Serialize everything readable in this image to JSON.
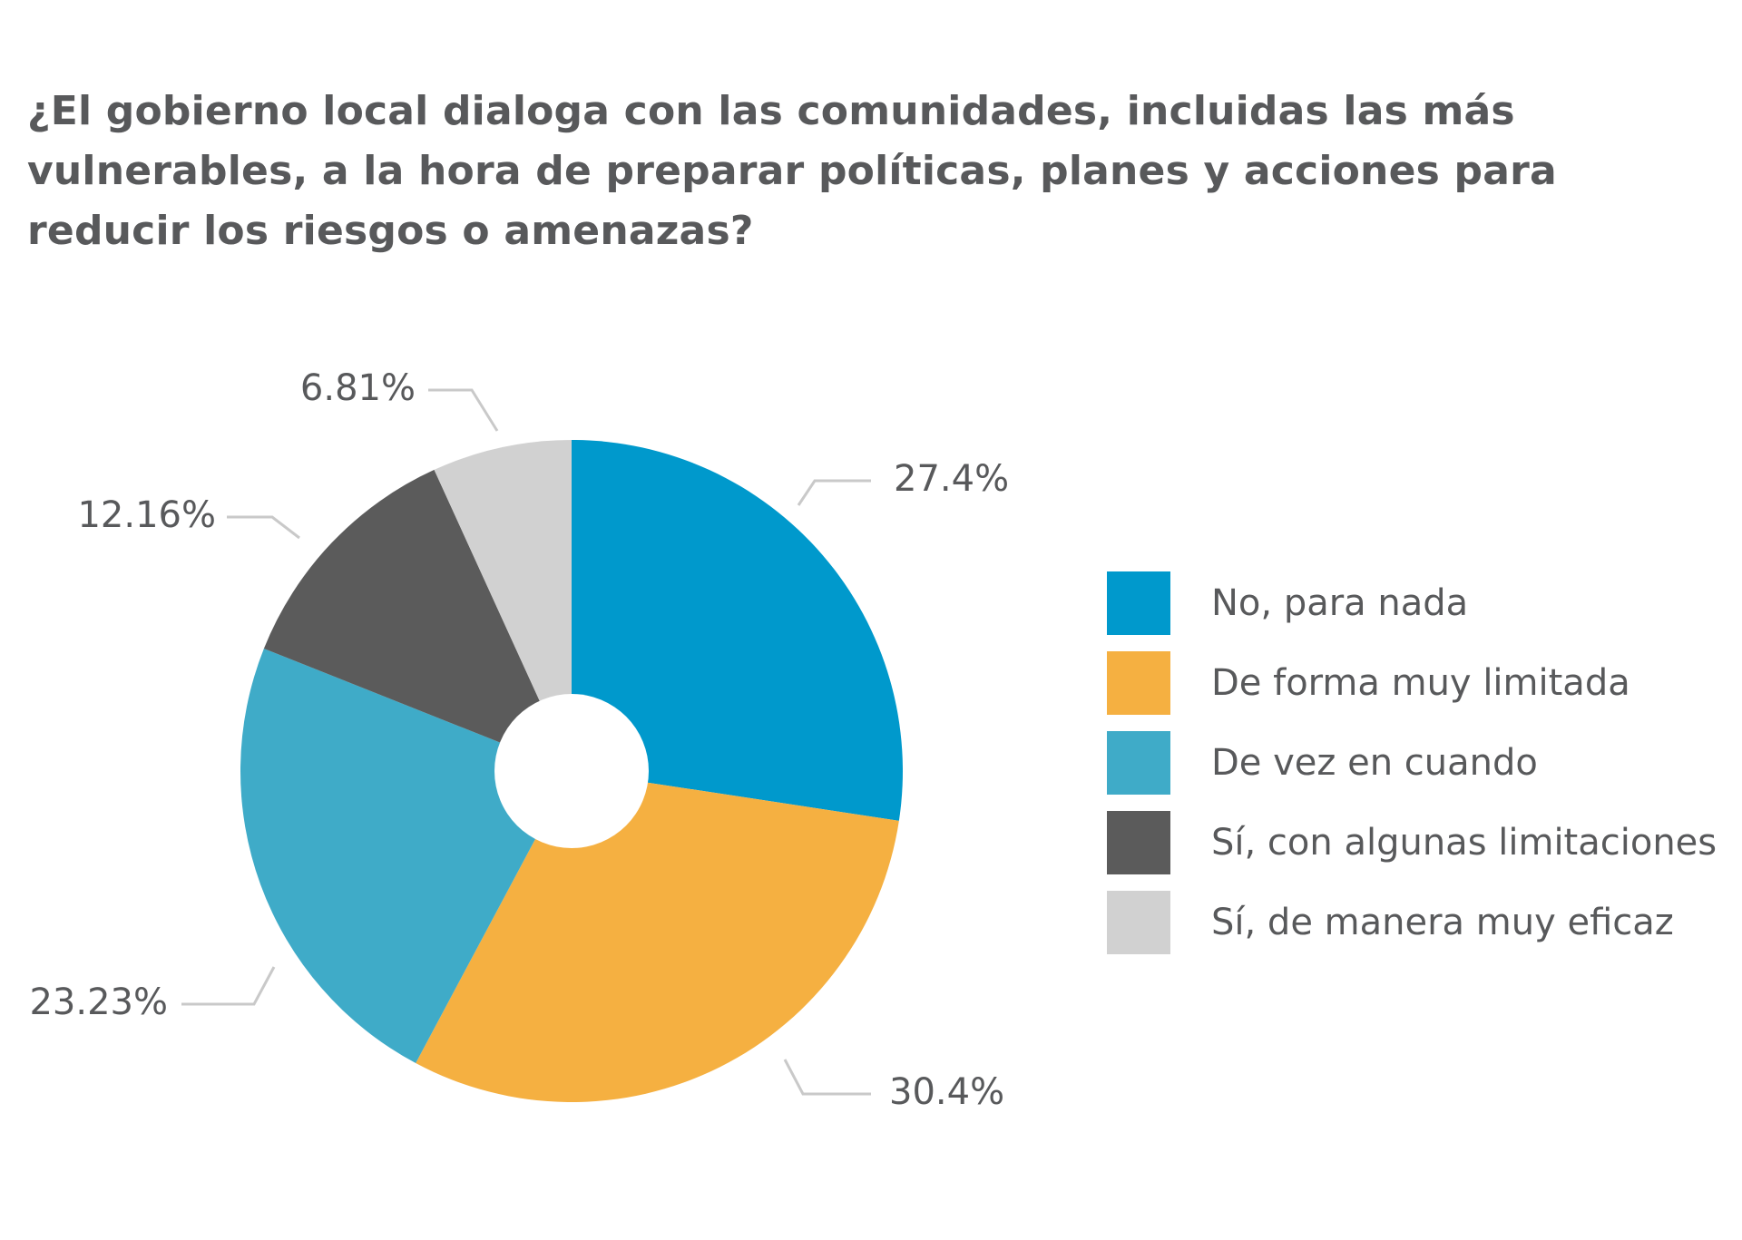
{
  "chart_data": {
    "type": "pie",
    "title": "¿El gobierno local dialoga con las comunidades, incluidas las más vulnerables, a la hora de preparar políticas, planes y acciones para reducir los riesgos o amenazas?",
    "categories": [
      "No, para nada",
      "De forma muy limitada",
      "De vez en cuando",
      "Sí, con algunas limitaciones",
      "Sí, de manera muy eficaz"
    ],
    "values": [
      27.4,
      30.4,
      23.23,
      12.16,
      6.81
    ],
    "value_labels": [
      "27.4%",
      "30.4%",
      "23.23%",
      "12.16%",
      "6.81%"
    ],
    "colors": [
      "#0099cc",
      "#f5b041",
      "#3fabc8",
      "#5b5b5b",
      "#d1d1d1"
    ],
    "legend_position": "right",
    "donut": true
  }
}
